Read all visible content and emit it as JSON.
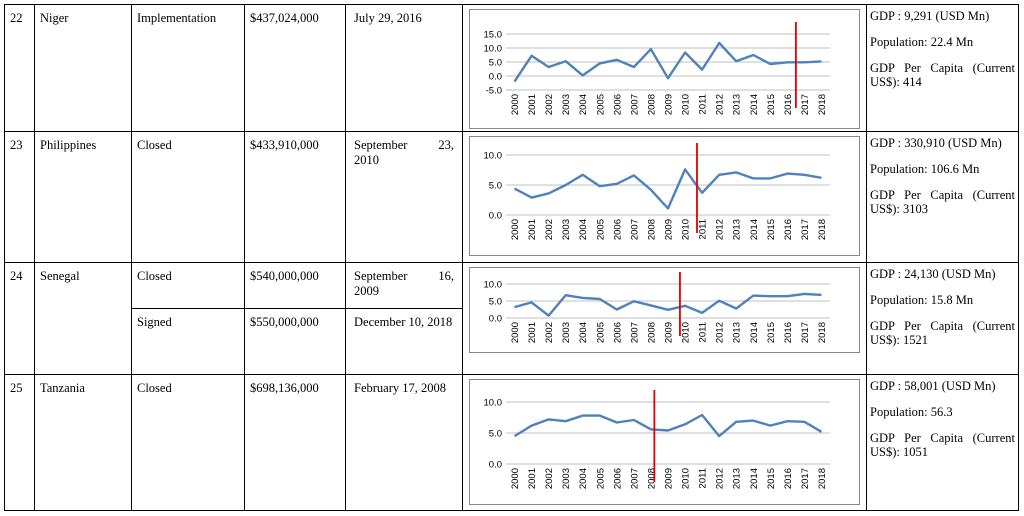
{
  "rows": [
    {
      "num": "22",
      "country": "Niger",
      "entries": [
        {
          "status": "Implementation",
          "amount": "$437,024,000",
          "date": "July 29, 2016"
        }
      ],
      "stats": {
        "gdp": "GDP : 9,291 (USD Mn)",
        "population": "Population: 22.4 Mn",
        "gdp_per_capita": "GDP Per Capita (Current US$): 414"
      }
    },
    {
      "num": "23",
      "country": "Philippines",
      "entries": [
        {
          "status": "Closed",
          "amount": "$433,910,000",
          "date": "September 23, 2010"
        }
      ],
      "stats": {
        "gdp": "GDP : 330,910 (USD Mn)",
        "population": "Population: 106.6 Mn",
        "gdp_per_capita": "GDP Per Capita (Current US$): 3103"
      }
    },
    {
      "num": "24",
      "country": "Senegal",
      "entries": [
        {
          "status": "Closed",
          "amount": "$540,000,000",
          "date": "September 16, 2009"
        },
        {
          "status": "Signed",
          "amount": "$550,000,000",
          "date": "December 10, 2018"
        }
      ],
      "stats": {
        "gdp": "GDP : 24,130 (USD Mn)",
        "population": "Population: 15.8 Mn",
        "gdp_per_capita": "GDP Per Capita (Current US$): 1521"
      }
    },
    {
      "num": "25",
      "country": "Tanzania",
      "entries": [
        {
          "status": "Closed",
          "amount": "$698,136,000",
          "date": "February 17, 2008"
        }
      ],
      "stats": {
        "gdp": "GDP : 58,001 (USD Mn)",
        "population": "Population:  56.3",
        "gdp_per_capita": " GDP Per Capita (Current US$): 1051"
      }
    }
  ],
  "chart_data": [
    {
      "type": "line",
      "x": [
        "2000",
        "2001",
        "2002",
        "2003",
        "2004",
        "2005",
        "2006",
        "2007",
        "2008",
        "2009",
        "2010",
        "2011",
        "2012",
        "2013",
        "2014",
        "2015",
        "2016",
        "2017",
        "2018"
      ],
      "series": [
        {
          "values": [
            -2.0,
            7.2,
            3.2,
            5.3,
            0.2,
            4.5,
            5.8,
            3.2,
            9.6,
            -0.8,
            8.4,
            2.3,
            11.8,
            5.3,
            7.5,
            4.3,
            4.9,
            4.9,
            5.2
          ]
        }
      ],
      "ylim": [
        -5,
        15
      ],
      "yticks": [
        "-5.0",
        "0.0",
        "5.0",
        "10.0",
        "15.0"
      ],
      "marker_x": 2016.5,
      "line_color": "#4f81bd",
      "marker_color": "#e00000",
      "grid": true
    },
    {
      "type": "line",
      "x": [
        "2000",
        "2001",
        "2002",
        "2003",
        "2004",
        "2005",
        "2006",
        "2007",
        "2008",
        "2009",
        "2010",
        "2011",
        "2012",
        "2013",
        "2014",
        "2015",
        "2016",
        "2017",
        "2018"
      ],
      "series": [
        {
          "values": [
            4.4,
            2.9,
            3.6,
            5.0,
            6.7,
            4.8,
            5.2,
            6.6,
            4.2,
            1.1,
            7.6,
            3.7,
            6.7,
            7.1,
            6.1,
            6.1,
            6.9,
            6.7,
            6.2
          ]
        }
      ],
      "ylim": [
        0,
        10
      ],
      "yticks": [
        "0.0",
        "5.0",
        "10.0"
      ],
      "marker_x": 2010.7,
      "line_color": "#4f81bd",
      "marker_color": "#e00000",
      "grid": true
    },
    {
      "type": "line",
      "x": [
        "2000",
        "2001",
        "2002",
        "2003",
        "2004",
        "2005",
        "2006",
        "2007",
        "2008",
        "2009",
        "2010",
        "2011",
        "2012",
        "2013",
        "2014",
        "2015",
        "2016",
        "2017",
        "2018"
      ],
      "series": [
        {
          "values": [
            3.2,
            4.6,
            0.7,
            6.7,
            5.9,
            5.6,
            2.5,
            4.9,
            3.7,
            2.4,
            3.6,
            1.5,
            5.1,
            2.8,
            6.6,
            6.4,
            6.4,
            7.1,
            6.8
          ]
        }
      ],
      "ylim": [
        0,
        10
      ],
      "yticks": [
        "0.0",
        "5.0",
        "10.0"
      ],
      "marker_x": 2009.7,
      "line_color": "#4f81bd",
      "marker_color": "#e00000",
      "grid": true
    },
    {
      "type": "line",
      "x": [
        "2000",
        "2001",
        "2002",
        "2003",
        "2004",
        "2005",
        "2006",
        "2007",
        "2008",
        "2009",
        "2010",
        "2011",
        "2012",
        "2013",
        "2014",
        "2015",
        "2016",
        "2017",
        "2018"
      ],
      "series": [
        {
          "values": [
            4.5,
            6.2,
            7.2,
            6.9,
            7.8,
            7.8,
            6.7,
            7.1,
            5.6,
            5.4,
            6.4,
            7.9,
            4.5,
            6.8,
            7.0,
            6.2,
            6.9,
            6.8,
            5.2
          ]
        }
      ],
      "ylim": [
        0,
        10
      ],
      "yticks": [
        "0.0",
        "5.0",
        "10.0"
      ],
      "marker_x": 2008.2,
      "line_color": "#4f81bd",
      "marker_color": "#e00000",
      "grid": true
    }
  ]
}
